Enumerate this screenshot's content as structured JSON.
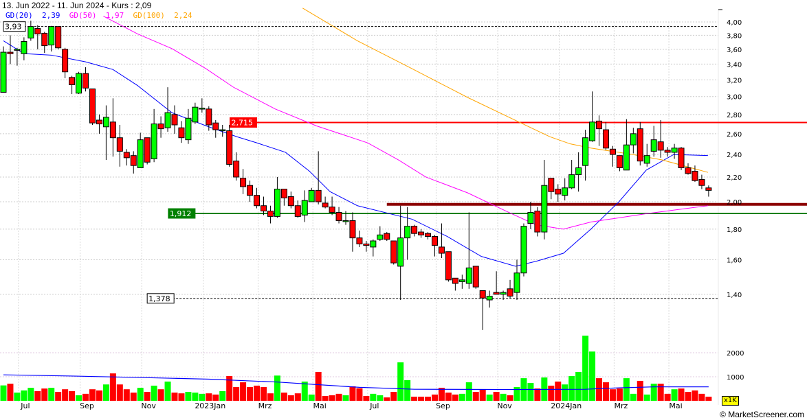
{
  "header": {
    "title": "13. Jun 2022 - 11. Jun 2024 - Kurs : 2,09"
  },
  "legend": [
    {
      "label": "GD(20)",
      "value": "2,39",
      "color": "#0000ff"
    },
    {
      "label": "GD(50)",
      "value": "1,97",
      "color": "#ff00ff"
    },
    {
      "label": "GD(100)",
      "value": "2,24",
      "color": "#ffa500"
    }
  ],
  "volume_unit": "x1K",
  "credit": "© MarketScreener.com",
  "chart_data": {
    "type": "candlestick",
    "y_scale": "log",
    "ylim": [
      1.2,
      4.1
    ],
    "y_ticks": [
      "4,00",
      "3,80",
      "3,60",
      "3,40",
      "3,20",
      "3,00",
      "2,80",
      "2,60",
      "2,40",
      "2,20",
      "2,00",
      "1,80",
      "1,60",
      "1,40"
    ],
    "y_tick_values": [
      4.0,
      3.8,
      3.6,
      3.4,
      3.2,
      3.0,
      2.8,
      2.6,
      2.4,
      2.2,
      2.0,
      1.8,
      1.6,
      1.4
    ],
    "x_ticks": [
      {
        "label": "Jul",
        "week": 3
      },
      {
        "label": "Sep",
        "week": 12
      },
      {
        "label": "Nov",
        "week": 21
      },
      {
        "label": "2023Jan",
        "week": 30
      },
      {
        "label": "Mrz",
        "week": 38
      },
      {
        "label": "Mai",
        "week": 46
      },
      {
        "label": "Jul",
        "week": 54
      },
      {
        "label": "Sep",
        "week": 64
      },
      {
        "label": "Nov",
        "week": 73
      },
      {
        "label": "2024Jan",
        "week": 82
      },
      {
        "label": "Mrz",
        "week": 90
      },
      {
        "label": "Mai",
        "week": 98
      }
    ],
    "grid": true,
    "colors": {
      "up": "#00ff00",
      "down": "#ff0000"
    },
    "candles_ohlc": [
      [
        3.05,
        3.64,
        3.05,
        3.56
      ],
      [
        3.56,
        3.8,
        3.4,
        3.54
      ],
      [
        3.59,
        3.62,
        3.38,
        3.6
      ],
      [
        3.54,
        3.77,
        3.45,
        3.71
      ],
      [
        3.76,
        4.02,
        3.72,
        3.93
      ],
      [
        3.9,
        3.95,
        3.6,
        3.82
      ],
      [
        3.83,
        3.85,
        3.55,
        3.65
      ],
      [
        3.66,
        3.94,
        3.57,
        3.93
      ],
      [
        3.93,
        3.93,
        3.6,
        3.62
      ],
      [
        3.6,
        3.62,
        3.22,
        3.3
      ],
      [
        3.23,
        3.25,
        3.03,
        3.14
      ],
      [
        3.04,
        3.3,
        3.03,
        3.28
      ],
      [
        3.28,
        3.36,
        3.06,
        3.1
      ],
      [
        3.09,
        3.09,
        2.69,
        2.71
      ],
      [
        2.74,
        2.8,
        2.6,
        2.7
      ],
      [
        2.67,
        2.9,
        2.35,
        2.77
      ],
      [
        2.72,
        2.98,
        2.38,
        2.56
      ],
      [
        2.56,
        2.69,
        2.29,
        2.43
      ],
      [
        2.42,
        2.45,
        2.3,
        2.37
      ],
      [
        2.39,
        2.43,
        2.23,
        2.3
      ],
      [
        2.28,
        2.61,
        2.28,
        2.54
      ],
      [
        2.56,
        2.56,
        2.31,
        2.33
      ],
      [
        2.36,
        2.86,
        2.33,
        2.7
      ],
      [
        2.7,
        2.78,
        2.56,
        2.65
      ],
      [
        2.66,
        3.11,
        2.62,
        2.82
      ],
      [
        2.8,
        2.9,
        2.6,
        2.69
      ],
      [
        2.66,
        2.73,
        2.51,
        2.56
      ],
      [
        2.54,
        2.86,
        2.5,
        2.76
      ],
      [
        2.72,
        2.93,
        2.7,
        2.88
      ],
      [
        2.87,
        2.98,
        2.82,
        2.87
      ],
      [
        2.86,
        2.89,
        2.63,
        2.69
      ],
      [
        2.71,
        2.74,
        2.56,
        2.64
      ],
      [
        2.64,
        2.69,
        2.57,
        2.64
      ],
      [
        2.63,
        2.69,
        2.29,
        2.31
      ],
      [
        2.34,
        2.42,
        2.17,
        2.2
      ],
      [
        2.19,
        2.27,
        2.06,
        2.12
      ],
      [
        2.13,
        2.17,
        2.0,
        2.05
      ],
      [
        2.05,
        2.11,
        1.95,
        1.97
      ],
      [
        1.97,
        2.04,
        1.9,
        1.93
      ],
      [
        1.93,
        1.97,
        1.84,
        1.89
      ],
      [
        1.89,
        2.2,
        1.88,
        2.1
      ],
      [
        2.1,
        2.1,
        1.97,
        2.03
      ],
      [
        2.04,
        2.08,
        1.95,
        1.97
      ],
      [
        1.97,
        2.01,
        1.88,
        1.89
      ],
      [
        1.9,
        2.09,
        1.85,
        2.01
      ],
      [
        2.0,
        2.11,
        2.0,
        2.09
      ],
      [
        2.09,
        2.43,
        1.98,
        2.0
      ],
      [
        1.99,
        2.04,
        1.95,
        1.96
      ],
      [
        1.96,
        2.04,
        1.9,
        1.92
      ],
      [
        1.92,
        1.96,
        1.84,
        1.86
      ],
      [
        1.86,
        1.93,
        1.83,
        1.86
      ],
      [
        1.86,
        1.92,
        1.65,
        1.74
      ],
      [
        1.74,
        1.79,
        1.68,
        1.7
      ],
      [
        1.7,
        1.72,
        1.65,
        1.69
      ],
      [
        1.68,
        1.73,
        1.62,
        1.72
      ],
      [
        1.73,
        1.82,
        1.72,
        1.76
      ],
      [
        1.77,
        1.78,
        1.72,
        1.73
      ],
      [
        1.72,
        1.72,
        1.57,
        1.58
      ],
      [
        1.56,
        1.97,
        1.37,
        1.74
      ],
      [
        1.74,
        1.96,
        1.6,
        1.82
      ],
      [
        1.82,
        1.83,
        1.75,
        1.77
      ],
      [
        1.78,
        1.8,
        1.74,
        1.76
      ],
      [
        1.77,
        1.78,
        1.73,
        1.75
      ],
      [
        1.75,
        1.76,
        1.62,
        1.69
      ],
      [
        1.68,
        1.84,
        1.61,
        1.64
      ],
      [
        1.65,
        1.65,
        1.47,
        1.48
      ],
      [
        1.49,
        1.49,
        1.42,
        1.46
      ],
      [
        1.47,
        1.51,
        1.43,
        1.48
      ],
      [
        1.46,
        1.92,
        1.43,
        1.55
      ],
      [
        1.56,
        1.56,
        1.43,
        1.44
      ],
      [
        1.42,
        1.42,
        1.22,
        1.38
      ],
      [
        1.37,
        1.42,
        1.33,
        1.39
      ],
      [
        1.41,
        1.53,
        1.4,
        1.4
      ],
      [
        1.4,
        1.42,
        1.37,
        1.41
      ],
      [
        1.43,
        1.48,
        1.38,
        1.39
      ],
      [
        1.41,
        1.6,
        1.37,
        1.52
      ],
      [
        1.52,
        1.84,
        1.5,
        1.82
      ],
      [
        1.84,
        2.0,
        1.8,
        1.92
      ],
      [
        1.93,
        1.96,
        1.75,
        1.78
      ],
      [
        1.78,
        2.35,
        1.73,
        2.13
      ],
      [
        2.19,
        2.19,
        2.02,
        2.08
      ],
      [
        2.1,
        2.14,
        2.0,
        2.06
      ],
      [
        2.05,
        2.19,
        2.01,
        2.11
      ],
      [
        2.11,
        2.35,
        2.1,
        2.22
      ],
      [
        2.22,
        2.42,
        2.08,
        2.28
      ],
      [
        2.3,
        2.64,
        2.17,
        2.56
      ],
      [
        2.53,
        3.06,
        2.52,
        2.72
      ],
      [
        2.73,
        2.79,
        2.48,
        2.65
      ],
      [
        2.64,
        2.72,
        2.44,
        2.46
      ],
      [
        2.45,
        2.48,
        2.29,
        2.4
      ],
      [
        2.39,
        2.39,
        2.25,
        2.28
      ],
      [
        2.26,
        2.75,
        2.26,
        2.49
      ],
      [
        2.49,
        2.66,
        2.41,
        2.6
      ],
      [
        2.65,
        2.72,
        2.3,
        2.34
      ],
      [
        2.32,
        2.5,
        2.29,
        2.39
      ],
      [
        2.43,
        2.68,
        2.38,
        2.54
      ],
      [
        2.52,
        2.74,
        2.37,
        2.44
      ],
      [
        2.44,
        2.47,
        2.38,
        2.42
      ],
      [
        2.42,
        2.5,
        2.36,
        2.46
      ],
      [
        2.46,
        2.47,
        2.26,
        2.28
      ],
      [
        2.28,
        2.32,
        2.22,
        2.23
      ],
      [
        2.25,
        2.3,
        2.16,
        2.17
      ],
      [
        2.18,
        2.22,
        2.1,
        2.13
      ],
      [
        2.11,
        2.13,
        2.04,
        2.09
      ]
    ],
    "volume_thousands": [
      640,
      710,
      340,
      430,
      540,
      400,
      510,
      540,
      370,
      480,
      400,
      230,
      290,
      480,
      430,
      680,
      1140,
      680,
      480,
      340,
      540,
      370,
      630,
      480,
      800,
      340,
      310,
      370,
      340,
      290,
      310,
      260,
      400,
      1030,
      570,
      770,
      570,
      630,
      570,
      310,
      1050,
      340,
      230,
      310,
      800,
      260,
      1200,
      200,
      230,
      290,
      230,
      600,
      520,
      200,
      290,
      230,
      140,
      370,
      1600,
      860,
      170,
      170,
      170,
      260,
      540,
      340,
      260,
      290,
      770,
      370,
      480,
      260,
      370,
      290,
      230,
      570,
      940,
      740,
      510,
      970,
      630,
      800,
      680,
      1030,
      1200,
      2710,
      2050,
      940,
      770,
      480,
      510,
      940,
      290,
      830,
      260,
      710,
      710,
      290,
      480,
      510,
      370,
      430,
      290,
      170
    ],
    "volume_ticks": [
      {
        "label": "2000",
        "value": 2000
      },
      {
        "label": "1000",
        "value": 1000
      }
    ],
    "volume_average": [
      [
        0,
        1080
      ],
      [
        10,
        1030
      ],
      [
        20,
        970
      ],
      [
        30,
        900
      ],
      [
        40,
        780
      ],
      [
        52,
        560
      ],
      [
        60,
        480
      ],
      [
        75,
        470
      ],
      [
        85,
        480
      ],
      [
        90,
        540
      ],
      [
        95,
        580
      ],
      [
        103,
        580
      ]
    ],
    "moving_averages": [
      {
        "name": "GD(20)",
        "color": "#0000ff",
        "points": [
          [
            0,
            3.72
          ],
          [
            3,
            3.54
          ],
          [
            7,
            3.52
          ],
          [
            12,
            3.43
          ],
          [
            16,
            3.33
          ],
          [
            19.6,
            3.13
          ],
          [
            24.6,
            2.82
          ],
          [
            29.6,
            2.68
          ],
          [
            34.1,
            2.57
          ],
          [
            37,
            2.51
          ],
          [
            41.2,
            2.42
          ],
          [
            44.7,
            2.25
          ],
          [
            47.7,
            2.08
          ],
          [
            51.7,
            1.97
          ],
          [
            59.7,
            1.87
          ],
          [
            64.8,
            1.75
          ],
          [
            69.8,
            1.62
          ],
          [
            74.8,
            1.56
          ],
          [
            77.8,
            1.59
          ],
          [
            81.8,
            1.64
          ],
          [
            85.8,
            1.8
          ],
          [
            89.9,
            2.0
          ],
          [
            93.9,
            2.26
          ],
          [
            97.9,
            2.4
          ],
          [
            102.9,
            2.39
          ]
        ]
      },
      {
        "name": "GD(50)",
        "color": "#ff00ff",
        "points": [
          [
            14.6,
            4.09
          ],
          [
            19.6,
            3.82
          ],
          [
            24.6,
            3.61
          ],
          [
            29.6,
            3.34
          ],
          [
            33.6,
            3.11
          ],
          [
            39.7,
            2.86
          ],
          [
            45.7,
            2.68
          ],
          [
            53.2,
            2.51
          ],
          [
            57.7,
            2.35
          ],
          [
            61.7,
            2.2
          ],
          [
            67.8,
            2.07
          ],
          [
            73.8,
            1.92
          ],
          [
            77.8,
            1.83
          ],
          [
            81.8,
            1.8
          ],
          [
            85.8,
            1.85
          ],
          [
            93.9,
            1.91
          ],
          [
            102.9,
            1.97
          ]
        ]
      },
      {
        "name": "GD(100)",
        "color": "#ffa500",
        "points": [
          [
            43.7,
            4.22
          ],
          [
            51.7,
            3.72
          ],
          [
            59.7,
            3.34
          ],
          [
            67.8,
            2.99
          ],
          [
            75.3,
            2.72
          ],
          [
            79.8,
            2.57
          ],
          [
            82.8,
            2.5
          ],
          [
            85.8,
            2.46
          ],
          [
            91.9,
            2.4
          ],
          [
            96.2,
            2.35
          ],
          [
            102.9,
            2.24
          ]
        ]
      }
    ],
    "levels": [
      {
        "label": "3,93",
        "value": 3.93,
        "style": "dashed",
        "color": "#000000",
        "from_week": 0
      },
      {
        "label": "2,715",
        "value": 2.715,
        "style": "solid",
        "color": "#ff0000",
        "from_week": 37
      },
      {
        "label": "1,912",
        "value": 1.912,
        "style": "solid",
        "color": "#008000",
        "from_week": 28
      },
      {
        "label": "",
        "value": 1.98,
        "style": "thick",
        "color": "#8b0000",
        "from_week": 56
      },
      {
        "label": "1,378",
        "value": 1.378,
        "style": "dashed",
        "color": "#000000",
        "from_week": 21
      }
    ]
  }
}
